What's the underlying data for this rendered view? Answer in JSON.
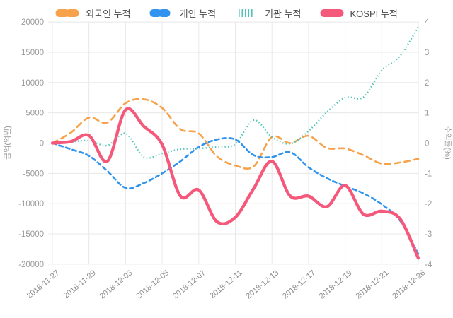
{
  "legend": {
    "items": [
      {
        "label": "외국인 누적",
        "color": "#F7A14A",
        "style": "long-dash"
      },
      {
        "label": "개인 누적",
        "color": "#3093EE",
        "style": "dash"
      },
      {
        "label": "기관 누적",
        "color": "#4EC4B5",
        "style": "dot"
      },
      {
        "label": "KOSPI 누적",
        "color": "#F4597B",
        "style": "solid"
      }
    ]
  },
  "axes": {
    "left_title": "금액(억원)",
    "right_title": "수익률(%)",
    "left_ticks": [
      "20000",
      "15000",
      "10000",
      "5000",
      "0",
      "-5000",
      "-10000",
      "-15000",
      "-20000"
    ],
    "right_ticks": [
      "4",
      "3",
      "2",
      "1",
      "0",
      "-1",
      "-2",
      "-3",
      "-4"
    ],
    "x_tick_labels": [
      "2018-11-27",
      "2018-11-29",
      "2018-12-03",
      "2018-12-05",
      "2018-12-07",
      "2018-12-11",
      "2018-12-13",
      "2018-12-17",
      "2018-12-19",
      "2018-12-21",
      "2018-12-26"
    ]
  },
  "chart_data": {
    "type": "line",
    "x": [
      "2018-11-27",
      "2018-11-28",
      "2018-11-29",
      "2018-11-30",
      "2018-12-03",
      "2018-12-04",
      "2018-12-05",
      "2018-12-06",
      "2018-12-07",
      "2018-12-10",
      "2018-12-11",
      "2018-12-12",
      "2018-12-13",
      "2018-12-14",
      "2018-12-17",
      "2018-12-18",
      "2018-12-19",
      "2018-12-20",
      "2018-12-21",
      "2018-12-24",
      "2018-12-26"
    ],
    "x_tick_every": 2,
    "left_ylabel": "금액(억원)",
    "right_ylabel": "수익률(%)",
    "left_ylim": [
      -20000,
      20000
    ],
    "right_ylim": [
      -4,
      4
    ],
    "grid": true,
    "legend_position": "top-center",
    "series": [
      {
        "name": "외국인 누적",
        "axis": "left",
        "color": "#F7A14A",
        "style": "long-dash",
        "values": [
          0,
          1700,
          4200,
          3400,
          6600,
          7250,
          5800,
          2300,
          1600,
          -2200,
          -3700,
          -3850,
          1000,
          0,
          1200,
          -800,
          -900,
          -2000,
          -3400,
          -3200,
          -2600
        ]
      },
      {
        "name": "개인 누적",
        "axis": "left",
        "color": "#3093EE",
        "style": "dash",
        "values": [
          0,
          -1000,
          -2100,
          -4600,
          -7400,
          -6600,
          -5000,
          -3000,
          -650,
          600,
          600,
          -2000,
          -2300,
          -1500,
          -4000,
          -5800,
          -7100,
          -8300,
          -10100,
          -12800,
          -18300
        ]
      },
      {
        "name": "기관 누적",
        "axis": "left",
        "color": "#4EC4B5",
        "style": "dot",
        "values": [
          0,
          200,
          400,
          -400,
          1600,
          -2300,
          -1700,
          -1000,
          -900,
          -600,
          -150,
          3800,
          1000,
          -100,
          2000,
          5100,
          7500,
          7600,
          12000,
          14400,
          19200
        ]
      },
      {
        "name": "KOSPI 누적",
        "axis": "right",
        "color": "#F4597B",
        "style": "solid",
        "values": [
          0,
          0.05,
          0.25,
          -0.6,
          1.1,
          0.55,
          -0.05,
          -1.75,
          -1.55,
          -2.6,
          -2.45,
          -1.5,
          -0.6,
          -1.75,
          -1.75,
          -2.1,
          -1.4,
          -2.35,
          -2.25,
          -2.5,
          -3.8
        ]
      }
    ]
  }
}
